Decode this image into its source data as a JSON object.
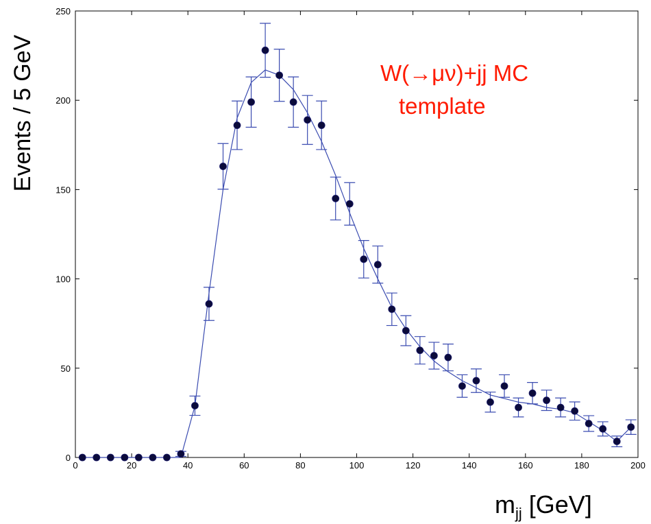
{
  "chart_data": {
    "type": "scatter",
    "xlabel_main": "m",
    "xlabel_sub": "jj",
    "xlabel_unit": "[GeV]",
    "ylabel": "Events / 5 GeV",
    "annotation_line1": "W(→μν)+jj MC",
    "annotation_line2": "template",
    "xlim": [
      0,
      200
    ],
    "ylim": [
      0,
      250
    ],
    "xticks": [
      0,
      20,
      40,
      60,
      80,
      100,
      120,
      140,
      160,
      180,
      200
    ],
    "yticks": [
      0,
      50,
      100,
      150,
      200,
      250
    ],
    "grid": false,
    "colors": {
      "points": "#0b0b3b",
      "errorbars": "#3a4bb0",
      "fit": "#3a4bb0",
      "annotation": "#ff1a00"
    },
    "series": [
      {
        "kind": "points_with_errors",
        "points": [
          {
            "x": 2.5,
            "y": 0,
            "err": 0
          },
          {
            "x": 7.5,
            "y": 0,
            "err": 0
          },
          {
            "x": 12.5,
            "y": 0,
            "err": 0
          },
          {
            "x": 17.5,
            "y": 0,
            "err": 0
          },
          {
            "x": 22.5,
            "y": 0,
            "err": 0
          },
          {
            "x": 27.5,
            "y": 0,
            "err": 0
          },
          {
            "x": 32.5,
            "y": 0,
            "err": 0
          },
          {
            "x": 37.5,
            "y": 2,
            "err": 1.4
          },
          {
            "x": 42.5,
            "y": 29,
            "err": 5.4
          },
          {
            "x": 47.5,
            "y": 86,
            "err": 9.3
          },
          {
            "x": 52.5,
            "y": 163,
            "err": 12.8
          },
          {
            "x": 57.5,
            "y": 186,
            "err": 13.6
          },
          {
            "x": 62.5,
            "y": 199,
            "err": 14.1
          },
          {
            "x": 67.5,
            "y": 228,
            "err": 15.1
          },
          {
            "x": 72.5,
            "y": 214,
            "err": 14.6
          },
          {
            "x": 77.5,
            "y": 199,
            "err": 14.1
          },
          {
            "x": 82.5,
            "y": 189,
            "err": 13.7
          },
          {
            "x": 87.5,
            "y": 186,
            "err": 13.6
          },
          {
            "x": 92.5,
            "y": 145,
            "err": 12.0
          },
          {
            "x": 97.5,
            "y": 142,
            "err": 11.9
          },
          {
            "x": 102.5,
            "y": 111,
            "err": 10.5
          },
          {
            "x": 107.5,
            "y": 108,
            "err": 10.4
          },
          {
            "x": 112.5,
            "y": 83,
            "err": 9.1
          },
          {
            "x": 117.5,
            "y": 71,
            "err": 8.4
          },
          {
            "x": 122.5,
            "y": 60,
            "err": 7.7
          },
          {
            "x": 127.5,
            "y": 57,
            "err": 7.5
          },
          {
            "x": 132.5,
            "y": 56,
            "err": 7.5
          },
          {
            "x": 137.5,
            "y": 40,
            "err": 6.3
          },
          {
            "x": 142.5,
            "y": 43,
            "err": 6.6
          },
          {
            "x": 147.5,
            "y": 31,
            "err": 5.6
          },
          {
            "x": 152.5,
            "y": 40,
            "err": 6.3
          },
          {
            "x": 157.5,
            "y": 28,
            "err": 5.3
          },
          {
            "x": 162.5,
            "y": 36,
            "err": 6.0
          },
          {
            "x": 167.5,
            "y": 32,
            "err": 5.7
          },
          {
            "x": 172.5,
            "y": 28,
            "err": 5.3
          },
          {
            "x": 177.5,
            "y": 26,
            "err": 5.1
          },
          {
            "x": 182.5,
            "y": 19,
            "err": 4.4
          },
          {
            "x": 187.5,
            "y": 16,
            "err": 4.0
          },
          {
            "x": 192.5,
            "y": 9,
            "err": 3.0
          },
          {
            "x": 197.5,
            "y": 17,
            "err": 4.1
          }
        ]
      },
      {
        "kind": "fit_line",
        "points": [
          {
            "x": 2.5,
            "y": 0
          },
          {
            "x": 7.5,
            "y": 0
          },
          {
            "x": 12.5,
            "y": 0
          },
          {
            "x": 17.5,
            "y": 0
          },
          {
            "x": 22.5,
            "y": 0
          },
          {
            "x": 27.5,
            "y": 0
          },
          {
            "x": 32.5,
            "y": 0
          },
          {
            "x": 37.5,
            "y": 0
          },
          {
            "x": 42.5,
            "y": 29
          },
          {
            "x": 47.5,
            "y": 92
          },
          {
            "x": 52.5,
            "y": 150
          },
          {
            "x": 57.5,
            "y": 190
          },
          {
            "x": 62.5,
            "y": 210
          },
          {
            "x": 67.5,
            "y": 217
          },
          {
            "x": 72.5,
            "y": 214
          },
          {
            "x": 77.5,
            "y": 206
          },
          {
            "x": 82.5,
            "y": 193
          },
          {
            "x": 87.5,
            "y": 177
          },
          {
            "x": 92.5,
            "y": 158
          },
          {
            "x": 97.5,
            "y": 137
          },
          {
            "x": 102.5,
            "y": 117
          },
          {
            "x": 107.5,
            "y": 100
          },
          {
            "x": 112.5,
            "y": 84
          },
          {
            "x": 117.5,
            "y": 72
          },
          {
            "x": 122.5,
            "y": 62
          },
          {
            "x": 127.5,
            "y": 54
          },
          {
            "x": 132.5,
            "y": 48
          },
          {
            "x": 137.5,
            "y": 43
          },
          {
            "x": 142.5,
            "y": 39
          },
          {
            "x": 147.5,
            "y": 35
          },
          {
            "x": 152.5,
            "y": 33
          },
          {
            "x": 157.5,
            "y": 31
          },
          {
            "x": 162.5,
            "y": 30
          },
          {
            "x": 167.5,
            "y": 28
          },
          {
            "x": 172.5,
            "y": 27
          },
          {
            "x": 177.5,
            "y": 25
          },
          {
            "x": 182.5,
            "y": 20
          },
          {
            "x": 187.5,
            "y": 15
          },
          {
            "x": 192.5,
            "y": 9
          },
          {
            "x": 197.5,
            "y": 17
          }
        ]
      }
    ]
  }
}
